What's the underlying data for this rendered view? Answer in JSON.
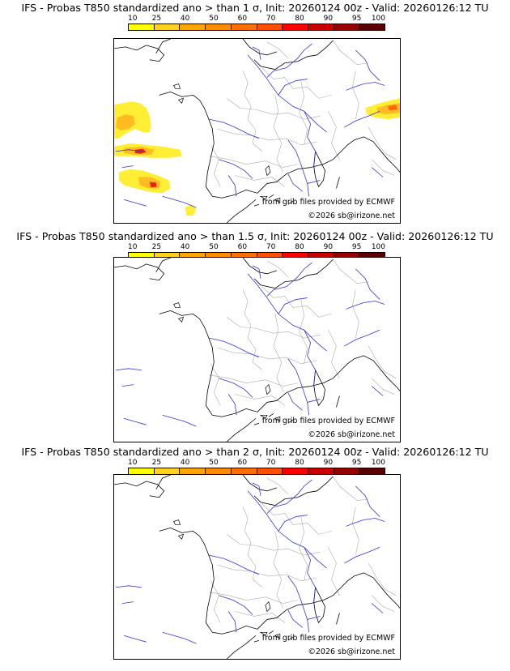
{
  "colors": {
    "scale": [
      "#ffff00",
      "#ffd21e",
      "#ffa500",
      "#ff8c00",
      "#ff6e00",
      "#ff5000",
      "#ff0000",
      "#c80000",
      "#960000",
      "#5a0000"
    ],
    "coast": "#000000",
    "rivers": "#3333dd",
    "borders": "#aaaaaa",
    "prob_low": "#ffee33",
    "prob_mid": "#ffbb22",
    "prob_high": "#ff6611",
    "prob_peak": "#ee2200"
  },
  "scale_ticks": [
    "10",
    "25",
    "40",
    "50",
    "60",
    "70",
    "80",
    "90",
    "95",
    "100"
  ],
  "panels": [
    {
      "title": "IFS - Probas T850  standardized ano > than 1 σ, Init: 20260124 00z - Valid: 20260126:12 TU",
      "source_label": "from grib files provided by ECMWF",
      "copyright_label": "©2026 sb@irizone.net"
    },
    {
      "title": "IFS - Probas T850  standardized ano > than 1.5 σ, Init: 20260124 00z - Valid: 20260126:12 TU",
      "source_label": "from grib files provided by ECMWF",
      "copyright_label": "©2026 sb@irizone.net"
    },
    {
      "title": "IFS - Probas T850  standardized ano > than 2 σ, Init: 20260124 00z - Valid: 20260126:12 TU",
      "source_label": "from grib files provided by ECMWF",
      "copyright_label": "©2026 sb@irizone.net"
    }
  ]
}
